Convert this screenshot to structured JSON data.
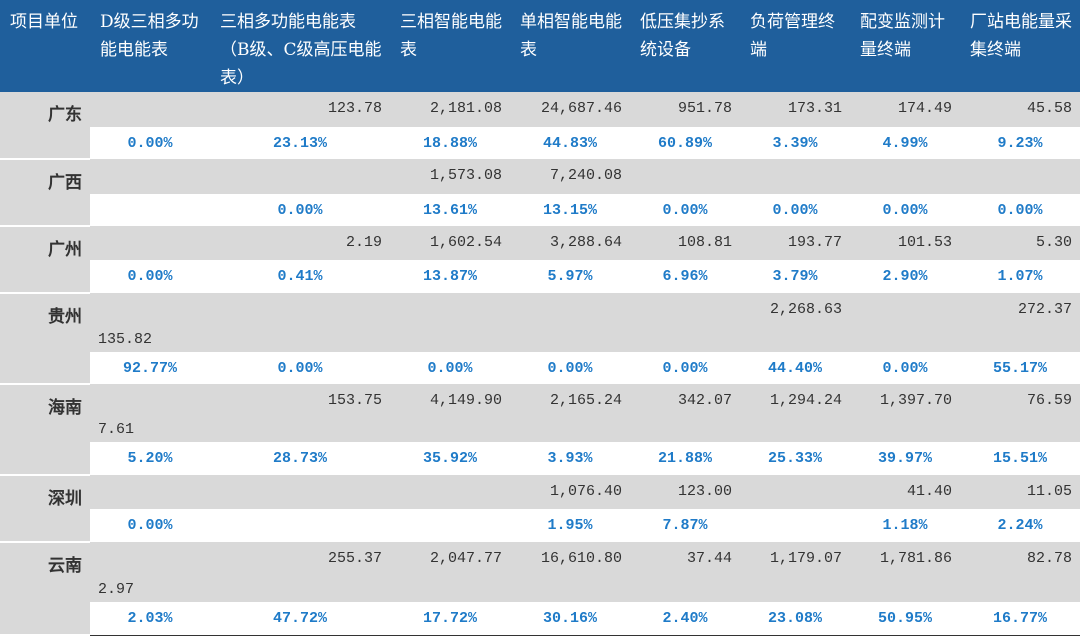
{
  "table": {
    "headers": [
      "项目单位",
      "D级三相多功能电能表",
      "三相多功能电能表（B级、C级高压电能表）",
      "三相智能电能表",
      "单相智能电能表",
      "低压集抄系统设备",
      "负荷管理终端",
      "配变监测计量终端",
      "厂站电能量采集终端"
    ],
    "rows": [
      {
        "name": "广东",
        "values": [
          null,
          "123.78",
          "2,181.08",
          "24,687.46",
          "951.78",
          "173.31",
          "174.49",
          "45.58"
        ],
        "shares": [
          "0.00%",
          "23.13%",
          "18.88%",
          "44.83%",
          "60.89%",
          "3.39%",
          "4.99%",
          "9.23%"
        ]
      },
      {
        "name": "广西",
        "values": [
          null,
          null,
          "1,573.08",
          "7,240.08",
          null,
          null,
          null,
          null
        ],
        "shares": [
          null,
          "0.00%",
          "13.61%",
          "13.15%",
          "0.00%",
          "0.00%",
          "0.00%",
          "0.00%"
        ]
      },
      {
        "name": "广州",
        "values": [
          null,
          "2.19",
          "1,602.54",
          "3,288.64",
          "108.81",
          "193.77",
          "101.53",
          "5.30"
        ],
        "shares": [
          "0.00%",
          "0.41%",
          "13.87%",
          "5.97%",
          "6.96%",
          "3.79%",
          "2.90%",
          "1.07%"
        ]
      },
      {
        "name": "贵州",
        "values": [
          "135.82",
          null,
          null,
          null,
          null,
          "2,268.63",
          null,
          "272.37"
        ],
        "shares": [
          "92.77%",
          "0.00%",
          "0.00%",
          "0.00%",
          "0.00%",
          "44.40%",
          "0.00%",
          "55.17%"
        ]
      },
      {
        "name": "海南",
        "values": [
          "7.61",
          "153.75",
          "4,149.90",
          "2,165.24",
          "342.07",
          "1,294.24",
          "1,397.70",
          "76.59"
        ],
        "shares": [
          "5.20%",
          "28.73%",
          "35.92%",
          "3.93%",
          "21.88%",
          "25.33%",
          "39.97%",
          "15.51%"
        ]
      },
      {
        "name": "深圳",
        "values": [
          null,
          null,
          null,
          "1,076.40",
          "123.00",
          null,
          "41.40",
          "11.05"
        ],
        "shares": [
          "0.00%",
          null,
          null,
          "1.95%",
          "7.87%",
          null,
          "1.18%",
          "2.24%"
        ]
      },
      {
        "name": "云南",
        "values": [
          "2.97",
          "255.37",
          "2,047.77",
          "16,610.80",
          "37.44",
          "1,179.07",
          "1,781.86",
          "82.78"
        ],
        "shares": [
          "2.03%",
          "47.72%",
          "17.72%",
          "30.16%",
          "2.40%",
          "23.08%",
          "50.95%",
          "16.77%"
        ]
      }
    ]
  }
}
